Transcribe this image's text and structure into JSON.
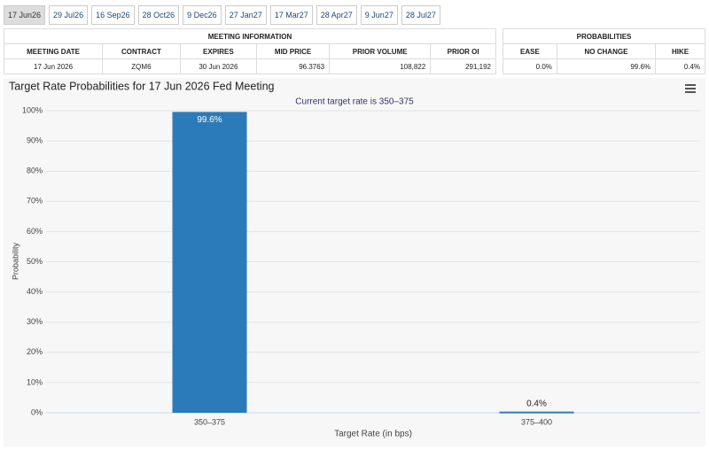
{
  "tabs": [
    "17 Jun26",
    "29 Jul26",
    "16 Sep26",
    "28 Oct26",
    "9 Dec26",
    "27 Jan27",
    "17 Mar27",
    "28 Apr27",
    "9 Jun27",
    "28 Jul27"
  ],
  "meeting_info": {
    "title": "MEETING INFORMATION",
    "headers": [
      "MEETING DATE",
      "CONTRACT",
      "EXPIRES",
      "MID PRICE",
      "PRIOR VOLUME",
      "PRIOR OI"
    ],
    "row": [
      "17 Jun 2026",
      "ZQM6",
      "30 Jun 2026",
      "96.3763",
      "108,822",
      "291,192"
    ]
  },
  "probabilities": {
    "title": "PROBABILITIES",
    "headers": [
      "EASE",
      "NO CHANGE",
      "HIKE"
    ],
    "row": [
      "0.0%",
      "99.6%",
      "0.4%"
    ]
  },
  "chart_data": {
    "type": "bar",
    "title": "Target Rate Probabilities for 17 Jun 2026 Fed Meeting",
    "subtitle": "Current target rate is 350–375",
    "x_label": "Target Rate (in bps)",
    "y_label": "Probability",
    "categories": [
      "350–375",
      "375–400"
    ],
    "values": [
      99.6,
      0.4
    ],
    "value_labels": [
      "99.6%",
      "0.4%"
    ],
    "color": "#2b7bba",
    "ylim": [
      0,
      100
    ],
    "yticks": [
      {
        "value": 0,
        "label": "0%"
      },
      {
        "value": 10,
        "label": "10%"
      },
      {
        "value": 20,
        "label": "20%"
      },
      {
        "value": 30,
        "label": "30%"
      },
      {
        "value": 40,
        "label": "40%"
      },
      {
        "value": 50,
        "label": "50%"
      },
      {
        "value": 60,
        "label": "60%"
      },
      {
        "value": 70,
        "label": "70%"
      },
      {
        "value": 80,
        "label": "80%"
      },
      {
        "value": 90,
        "label": "90%"
      },
      {
        "value": 100,
        "label": "100%"
      }
    ],
    "grid": true
  }
}
